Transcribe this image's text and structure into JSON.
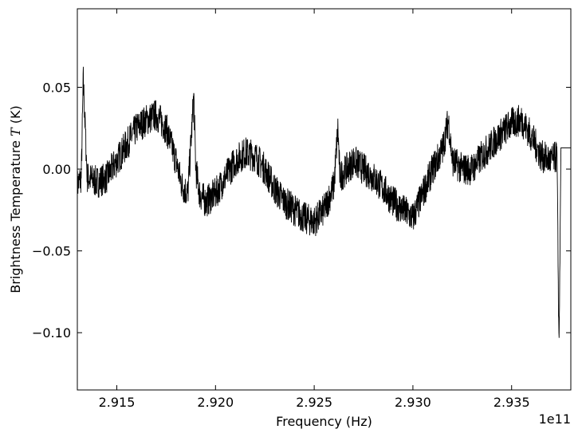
{
  "chart_data": {
    "type": "line",
    "xlabel": "Frequency (Hz)",
    "ylabel_prefix": "Brightness Temperature ",
    "ylabel_symbol": "T",
    "ylabel_suffix": " (K)",
    "x_offset_label": "1e11",
    "xlim": [
      2.913,
      2.938
    ],
    "ylim": [
      -0.135,
      0.098
    ],
    "x_scale": "×1e11 Hz",
    "x_ticks": [
      {
        "value": 2.915,
        "label": "2.915"
      },
      {
        "value": 2.92,
        "label": "2.920"
      },
      {
        "value": 2.925,
        "label": "2.925"
      },
      {
        "value": 2.93,
        "label": "2.930"
      },
      {
        "value": 2.935,
        "label": "2.935"
      }
    ],
    "y_ticks": [
      {
        "value": 0.05,
        "label": "0.05"
      },
      {
        "value": 0.0,
        "label": "0.00"
      },
      {
        "value": -0.05,
        "label": "−0.05"
      },
      {
        "value": -0.1,
        "label": "−0.10"
      }
    ],
    "grid": false,
    "line_color": "#000000",
    "series": [
      {
        "x": [
          2.913,
          2.9132,
          2.9133,
          2.9135,
          2.914,
          2.9145,
          2.915,
          2.9155,
          2.916,
          2.9165,
          2.917,
          2.9175,
          2.918,
          2.9183,
          2.9186,
          2.9189,
          2.919,
          2.9192,
          2.9195,
          2.92,
          2.9205,
          2.921,
          2.9215,
          2.922,
          2.9225,
          2.923,
          2.9235,
          2.924,
          2.9245,
          2.925,
          2.9255,
          2.926,
          2.9262,
          2.9263,
          2.9265,
          2.927,
          2.9275,
          2.928,
          2.9285,
          2.929,
          2.9295,
          2.93,
          2.9305,
          2.931,
          2.9315,
          2.9318,
          2.932,
          2.9325,
          2.933,
          2.9335,
          2.934,
          2.9345,
          2.935,
          2.9355,
          2.936,
          2.9365,
          2.937,
          2.9373,
          2.9374,
          2.9375,
          2.9376,
          2.938
        ],
        "y": [
          -0.01,
          -0.005,
          0.055,
          -0.005,
          -0.008,
          -0.005,
          0.005,
          0.015,
          0.025,
          0.03,
          0.033,
          0.025,
          0.005,
          -0.01,
          -0.015,
          0.045,
          0.0,
          -0.015,
          -0.02,
          -0.015,
          -0.005,
          0.005,
          0.01,
          0.008,
          0.0,
          -0.012,
          -0.02,
          -0.025,
          -0.03,
          -0.032,
          -0.025,
          -0.01,
          0.025,
          -0.005,
          -0.002,
          0.005,
          0.0,
          -0.005,
          -0.012,
          -0.02,
          -0.025,
          -0.03,
          -0.015,
          0.0,
          0.012,
          0.03,
          0.005,
          0.0,
          0.0,
          0.008,
          0.015,
          0.022,
          0.028,
          0.03,
          0.02,
          0.008,
          0.005,
          0.008,
          -0.11,
          0.013,
          0.013,
          0.013
        ]
      }
    ]
  }
}
